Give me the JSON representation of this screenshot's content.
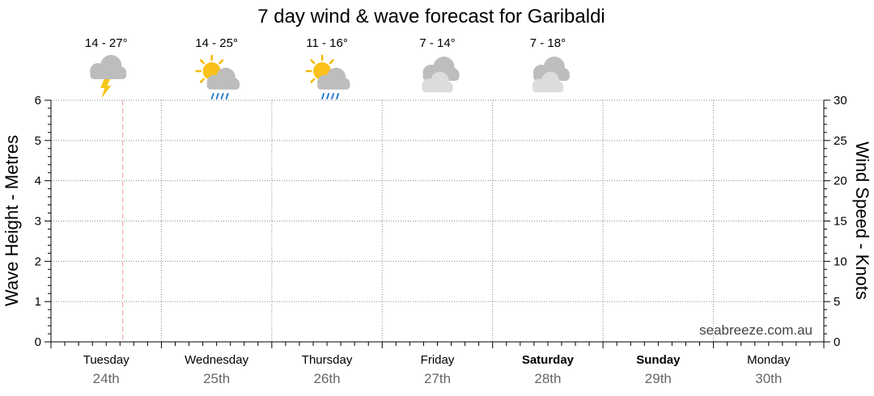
{
  "chart_data": {
    "type": "line",
    "title": "7 day wind & wave forecast for Garibaldi",
    "ylabel_left": "Wave Height - Metres",
    "ylabel_right": "Wind Speed - Knots",
    "ylim_left": [
      0,
      6
    ],
    "ylim_right": [
      0,
      30
    ],
    "yticks_left": [
      0,
      1,
      2,
      3,
      4,
      5,
      6
    ],
    "yticks_right": [
      0,
      5,
      10,
      15,
      20,
      25,
      30
    ],
    "grid": true,
    "days": [
      {
        "day": "Tuesday",
        "date": "24th",
        "weekend": false,
        "temp": "14 - 27°",
        "icon": "storm-icon"
      },
      {
        "day": "Wednesday",
        "date": "25th",
        "weekend": false,
        "temp": "14 - 25°",
        "icon": "sun-cloud-rain-icon"
      },
      {
        "day": "Thursday",
        "date": "26th",
        "weekend": false,
        "temp": "11 - 16°",
        "icon": "sun-cloud-rain-icon"
      },
      {
        "day": "Friday",
        "date": "27th",
        "weekend": false,
        "temp": "7 - 14°",
        "icon": "cloudy-icon"
      },
      {
        "day": "Saturday",
        "date": "28th",
        "weekend": true,
        "temp": "7 - 18°",
        "icon": "cloudy-icon"
      },
      {
        "day": "Sunday",
        "date": "29th",
        "weekend": true,
        "temp": "",
        "icon": ""
      },
      {
        "day": "Monday",
        "date": "30th",
        "weekend": false,
        "temp": "",
        "icon": ""
      }
    ],
    "series": [],
    "current_time_day_fraction": 0.65,
    "watermark": "seabreeze.com.au"
  }
}
